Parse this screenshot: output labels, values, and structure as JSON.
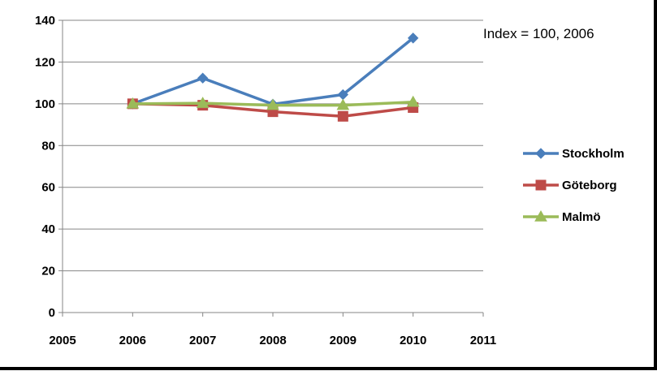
{
  "chart_data": {
    "type": "line",
    "title": "",
    "xlabel": "",
    "ylabel": "",
    "annotation": "Index = 100, 2006",
    "xlim": [
      2005,
      2011
    ],
    "ylim": [
      0,
      140
    ],
    "x_ticks": [
      2005,
      2006,
      2007,
      2008,
      2009,
      2010,
      2011
    ],
    "y_ticks": [
      0,
      20,
      40,
      60,
      80,
      100,
      120,
      140
    ],
    "grid": "horizontal",
    "legend_position": "right",
    "x": [
      2006,
      2007,
      2008,
      2009,
      2010
    ],
    "series": [
      {
        "name": "Stockholm",
        "color": "#4a7ebb",
        "marker": "diamond",
        "values": [
          100,
          112.3,
          99.8,
          104.4,
          131.5
        ]
      },
      {
        "name": "Göteborg",
        "color": "#be4b48",
        "marker": "square",
        "values": [
          100,
          99.3,
          96.2,
          94,
          98.2
        ]
      },
      {
        "name": "Malmö",
        "color": "#9bbb59",
        "marker": "triangle",
        "values": [
          100,
          100.3,
          99.3,
          99.3,
          100.8
        ]
      }
    ]
  }
}
